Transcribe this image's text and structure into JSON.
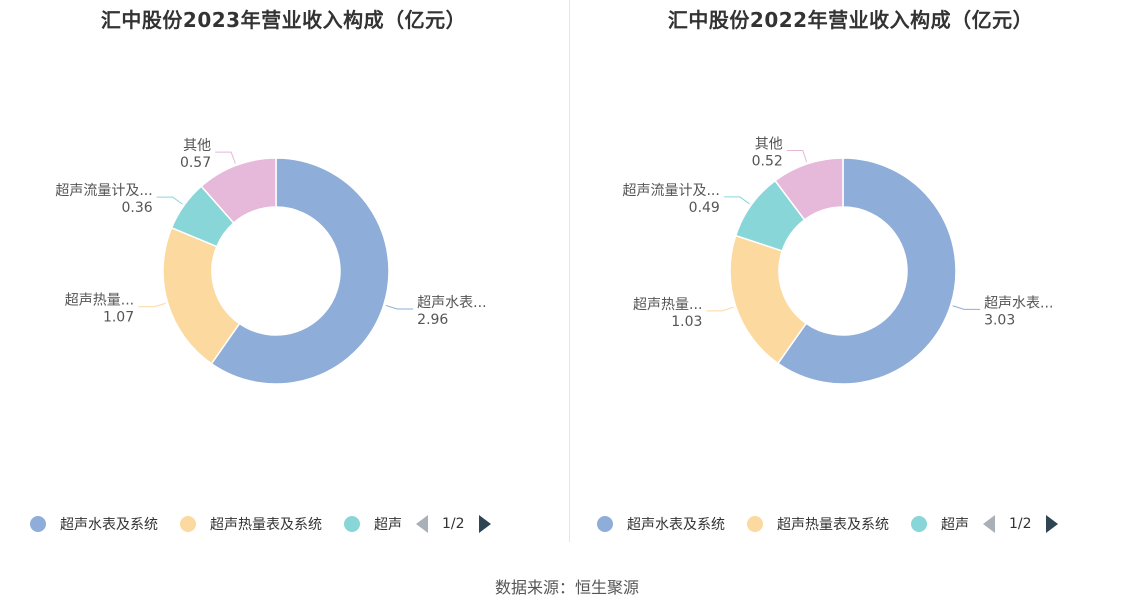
{
  "chart_data": [
    {
      "type": "pie",
      "title": "汇中股份2023年营业收入构成（亿元）",
      "categories": [
        "超声水表及系统",
        "超声热量表及系统",
        "超声流量计及系统",
        "其他"
      ],
      "values": [
        2.96,
        1.07,
        0.36,
        0.57
      ],
      "slice_labels": [
        "超声水表...",
        "超声热量...",
        "超声流量计及...",
        "其他"
      ],
      "value_labels": [
        "2.96",
        "1.07",
        "0.36",
        "0.57"
      ],
      "colors": [
        "#8eadd9",
        "#fcd99f",
        "#89d6d9",
        "#e6b8da"
      ],
      "legend": {
        "items": [
          "超声水表及系统",
          "超声热量表及系统",
          "超声"
        ],
        "page": "1/2",
        "placement": "bottom"
      }
    },
    {
      "type": "pie",
      "title": "汇中股份2022年营业收入构成（亿元）",
      "categories": [
        "超声水表及系统",
        "超声热量表及系统",
        "超声流量计及系统",
        "其他"
      ],
      "values": [
        3.03,
        1.03,
        0.49,
        0.52
      ],
      "slice_labels": [
        "超声水表...",
        "超声热量...",
        "超声流量计及...",
        "其他"
      ],
      "value_labels": [
        "3.03",
        "1.03",
        "0.49",
        "0.52"
      ],
      "colors": [
        "#8eadd9",
        "#fcd99f",
        "#89d6d9",
        "#e6b8da"
      ],
      "legend": {
        "items": [
          "超声水表及系统",
          "超声热量表及系统",
          "超声"
        ],
        "page": "1/2",
        "placement": "bottom"
      }
    }
  ],
  "source": "数据来源：恒生聚源",
  "icons": {
    "prev": "triangle-left-icon",
    "next": "triangle-right-icon"
  }
}
